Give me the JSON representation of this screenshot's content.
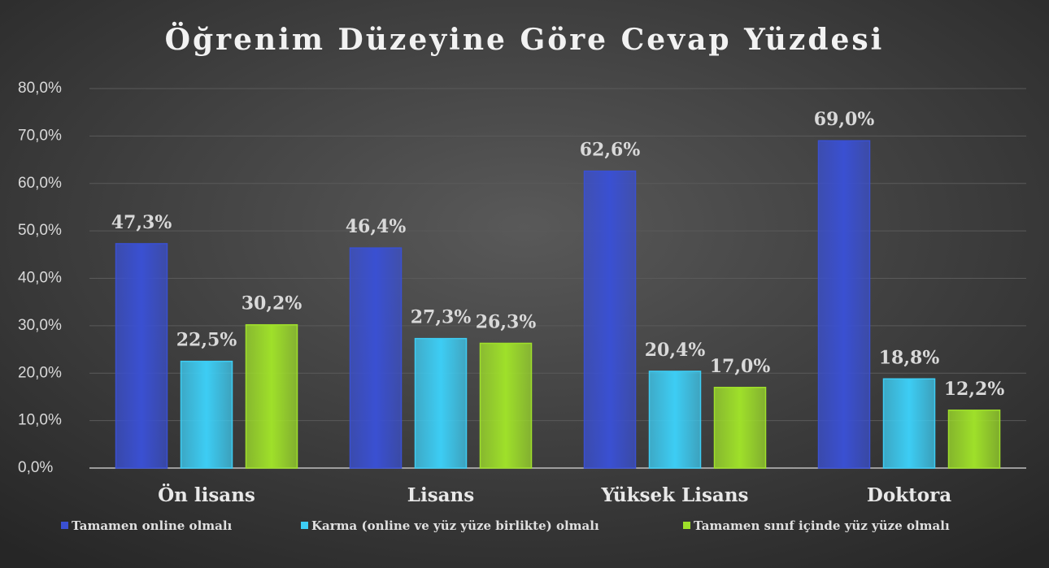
{
  "chart_data": {
    "type": "bar",
    "title": "Öğrenim Düzeyine Göre Cevap Yüzdesi",
    "categories": [
      "Ön lisans",
      "Lisans",
      "Yüksek Lisans",
      "Doktora"
    ],
    "series": [
      {
        "name": "Tamamen online olmalı",
        "color": "#3a50d2",
        "values": [
          47.3,
          46.4,
          62.6,
          69.0
        ],
        "value_labels": [
          "47,3%",
          "46,4%",
          "62,6%",
          "69,0%"
        ]
      },
      {
        "name": "Karma (online ve yüz yüze birlikte) olmalı",
        "color": "#3dcdf4",
        "values": [
          22.5,
          27.3,
          20.4,
          18.8
        ],
        "value_labels": [
          "22,5%",
          "27,3%",
          "20,4%",
          "18,8%"
        ]
      },
      {
        "name": "Tamamen sınıf içinde yüz yüze olmalı",
        "color": "#9fe02a",
        "values": [
          30.2,
          26.3,
          17.0,
          12.2
        ],
        "value_labels": [
          "30,2%",
          "26,3%",
          "17,0%",
          "12,2%"
        ]
      }
    ],
    "ylim": [
      0,
      80
    ],
    "yticks": [
      {
        "value": 0,
        "label": "0,0%"
      },
      {
        "value": 10,
        "label": "10,0%"
      },
      {
        "value": 20,
        "label": "20,0%"
      },
      {
        "value": 30,
        "label": "30,0%"
      },
      {
        "value": 40,
        "label": "40,0%"
      },
      {
        "value": 50,
        "label": "50,0%"
      },
      {
        "value": 60,
        "label": "60,0%"
      },
      {
        "value": 70,
        "label": "70,0%"
      },
      {
        "value": 80,
        "label": "80,0%"
      }
    ],
    "grid": true,
    "legend": "bottom"
  }
}
